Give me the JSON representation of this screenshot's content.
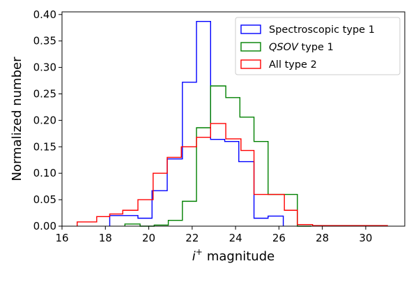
{
  "chart_data": {
    "type": "histogram-step",
    "title": "",
    "xlabel": {
      "math": "i",
      "sup": "+",
      "text": "magnitude"
    },
    "ylabel": "Normalized number",
    "xlim": [
      16,
      31.8
    ],
    "ylim": [
      0,
      0.405
    ],
    "xticks": [
      16,
      18,
      20,
      22,
      24,
      26,
      28,
      30
    ],
    "xtick_labels": [
      "16",
      "18",
      "20",
      "22",
      "24",
      "26",
      "28",
      "30"
    ],
    "yticks": [
      0,
      0.05,
      0.1,
      0.15,
      0.2,
      0.25,
      0.3,
      0.35,
      0.4
    ],
    "ytick_labels": [
      "0.00",
      "0.05",
      "0.10",
      "0.15",
      "0.20",
      "0.25",
      "0.30",
      "0.35",
      "0.40"
    ],
    "legend_position": "top-right",
    "series": [
      {
        "name": "Spectroscopic type 1",
        "legend_parts": [
          {
            "text": "Spectroscopic type 1",
            "italic": false
          }
        ],
        "color": "#0000ff",
        "edges": [
          18.2,
          18.85,
          19.5,
          20.15,
          20.85,
          21.55,
          22.2,
          22.85,
          23.5,
          24.15,
          24.85,
          25.5,
          26.2
        ],
        "values": [
          0.02,
          0.02,
          0.015,
          0.067,
          0.127,
          0.272,
          0.387,
          0.164,
          0.16,
          0.122,
          0.015,
          0.019
        ]
      },
      {
        "name": "QSOV type 1",
        "legend_parts": [
          {
            "text": "QSOV",
            "italic": true
          },
          {
            "text": " type 1",
            "italic": false
          }
        ],
        "color": "#008000",
        "edges": [
          18.9,
          19.6,
          20.25,
          20.9,
          21.55,
          22.2,
          22.85,
          23.55,
          24.2,
          24.85,
          25.5,
          26.2,
          26.85,
          27.5
        ],
        "values": [
          0.004,
          0.0,
          0.002,
          0.011,
          0.047,
          0.186,
          0.265,
          0.243,
          0.206,
          0.16,
          0.06,
          0.06,
          0.0
        ]
      },
      {
        "name": "All type 2",
        "legend_parts": [
          {
            "text": "All type 2",
            "italic": false
          }
        ],
        "color": "#ff0000",
        "edges": [
          16.7,
          17.6,
          18.2,
          18.8,
          19.5,
          20.2,
          20.85,
          21.5,
          22.2,
          22.85,
          23.55,
          24.25,
          24.85,
          25.55,
          26.25,
          26.85,
          27.55,
          31.0
        ],
        "values": [
          0.008,
          0.018,
          0.023,
          0.03,
          0.05,
          0.1,
          0.13,
          0.15,
          0.168,
          0.194,
          0.165,
          0.143,
          0.06,
          0.06,
          0.03,
          0.003,
          0.001
        ]
      }
    ]
  }
}
